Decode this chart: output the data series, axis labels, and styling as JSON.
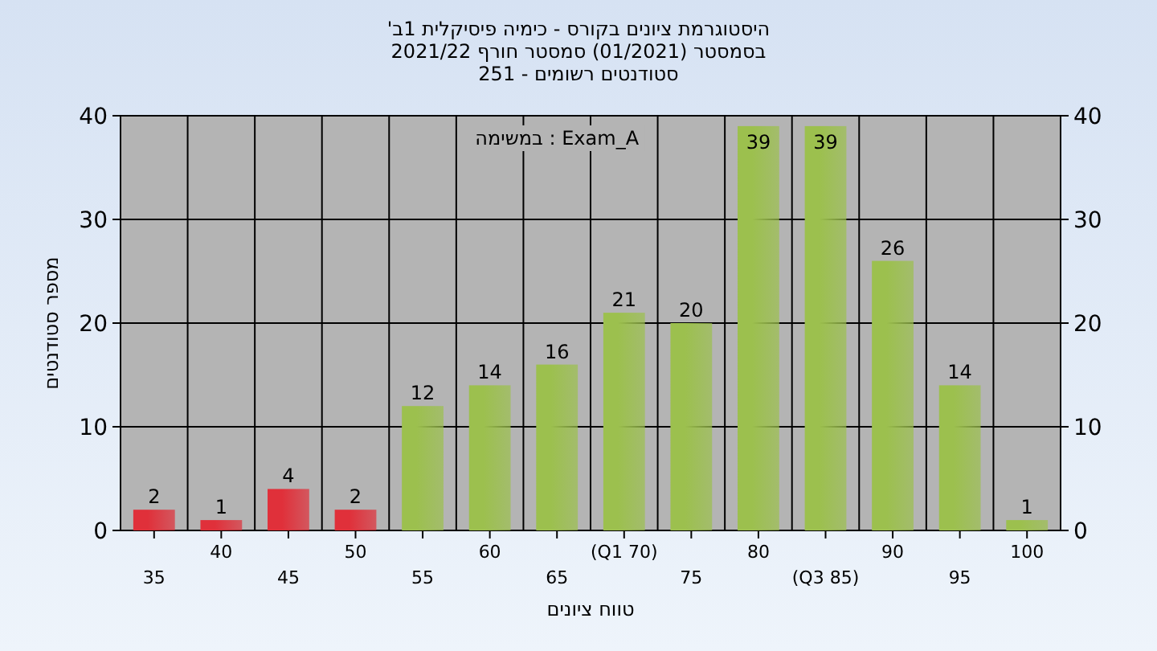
{
  "chart_data": {
    "type": "bar",
    "title": "היסטוגרמת ציונים בקורס - כימיה פיסיקלית 1ב'",
    "subtitle": "בסמסטר (01/2021) סמסטר חורף 2021/22\nסטודנטים רשומים - 251",
    "xlabel": "טווח ציונים",
    "ylabel": "מספר סטודנטים",
    "annotations": [
      "במשימה : Exam_A"
    ],
    "categories": [
      "35",
      "40",
      "45",
      "50",
      "55",
      "60",
      "65",
      "(Q1 70)",
      "75",
      "80",
      "(Q3 85)",
      "90",
      "95",
      "100"
    ],
    "values": [
      2,
      1,
      4,
      2,
      12,
      14,
      16,
      21,
      20,
      39,
      39,
      26,
      14,
      1
    ],
    "colors": [
      "#e0303a",
      "#e0303a",
      "#e0303a",
      "#e0303a",
      "#9cc04e",
      "#9cc04e",
      "#9cc04e",
      "#9cc04e",
      "#9cc04e",
      "#9cc04e",
      "#9cc04e",
      "#9cc04e",
      "#9cc04e",
      "#9cc04e"
    ],
    "ylim": [
      0,
      40
    ],
    "yticks": [
      0,
      10,
      20,
      30,
      40
    ],
    "y2lim": [
      0,
      40
    ],
    "y2ticks": [
      0,
      10,
      20,
      30,
      40
    ],
    "data_labels": true,
    "grid": true
  }
}
